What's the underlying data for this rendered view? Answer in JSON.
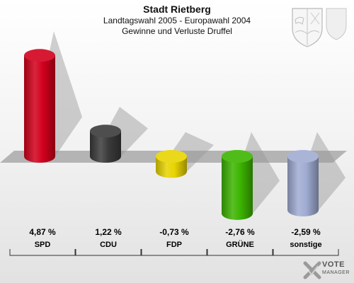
{
  "header": {
    "title": "Stadt Rietberg",
    "subtitle1": "Landtagswahl 2005 - Europawahl 2004",
    "subtitle2": "Gewinne und Verluste Druffel"
  },
  "logo": {
    "main": "VOTE",
    "sub": "MANAGER"
  },
  "icons": {
    "crest": "coat-of-arms-icon",
    "logo": "vote-manager-logo-icon"
  },
  "chart_data": {
    "type": "bar",
    "title": "Stadt Rietberg",
    "subtitle": [
      "Landtagswahl 2005 - Europawahl 2004",
      "Gewinne und Verluste Druffel"
    ],
    "categories": [
      "SPD",
      "CDU",
      "FDP",
      "GRÜNE",
      "sonstige"
    ],
    "values": [
      4.87,
      1.22,
      -0.73,
      -2.76,
      -2.59
    ],
    "value_labels": [
      "4,87 %",
      "1,22 %",
      "-0,73 %",
      "-2,76 %",
      "-2,59 %"
    ],
    "colors": [
      "#d2001c",
      "#3a3a3a",
      "#e8d400",
      "#3cb400",
      "#a0acd2"
    ],
    "unit": "%",
    "ylim": [
      -2.76,
      4.87
    ],
    "grid": false,
    "legend": "none"
  }
}
